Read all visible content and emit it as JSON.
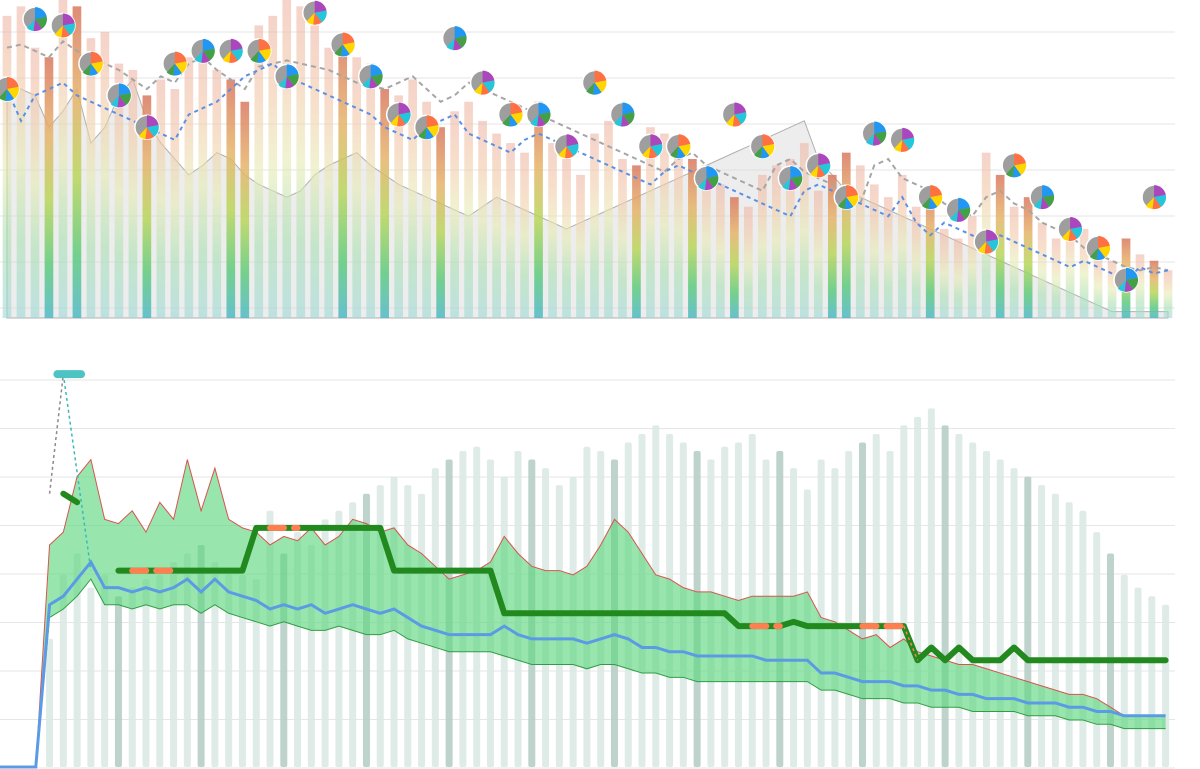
{
  "chart_data": [
    {
      "type": "bar",
      "x": [
        0,
        1,
        2,
        3,
        4,
        5,
        6,
        7,
        8,
        9,
        10,
        11,
        12,
        13,
        14,
        15,
        16,
        17,
        18,
        19,
        20,
        21,
        22,
        23,
        24,
        25,
        26,
        27,
        28,
        29,
        30,
        31,
        32,
        33,
        34,
        35,
        36,
        37,
        38,
        39,
        40,
        41,
        42,
        43,
        44,
        45,
        46,
        47,
        48,
        49,
        50,
        51,
        52,
        53,
        54,
        55,
        56,
        57,
        58,
        59,
        60,
        61,
        62,
        63,
        64,
        65,
        66,
        67,
        68,
        69,
        70,
        71,
        72,
        73,
        74,
        75,
        76,
        77,
        78,
        79,
        80,
        81,
        82,
        83
      ],
      "ylim": [
        0,
        100
      ],
      "grid": true,
      "series": [
        {
          "role": "bars",
          "values": [
            95,
            98,
            85,
            82,
            100,
            98,
            88,
            90,
            80,
            78,
            70,
            75,
            72,
            82,
            85,
            78,
            75,
            68,
            92,
            95,
            100,
            98,
            92,
            85,
            88,
            82,
            80,
            72,
            70,
            75,
            68,
            60,
            65,
            68,
            62,
            58,
            55,
            52,
            68,
            55,
            50,
            45,
            58,
            62,
            50,
            48,
            60,
            58,
            55,
            50,
            48,
            42,
            38,
            35,
            45,
            48,
            50,
            55,
            40,
            45,
            52,
            48,
            42,
            38,
            45,
            35,
            40,
            28,
            25,
            32,
            52,
            45,
            35,
            38,
            30,
            25,
            30,
            28,
            20,
            18,
            25,
            20,
            18,
            15
          ]
        },
        {
          "role": "line-dashed-grey",
          "values": [
            85,
            86,
            84,
            82,
            87,
            84,
            82,
            80,
            78,
            75,
            72,
            76,
            74,
            80,
            82,
            78,
            75,
            72,
            79,
            80,
            81,
            80,
            79,
            78,
            76,
            74,
            73,
            72,
            74,
            76,
            72,
            68,
            70,
            74,
            72,
            70,
            68,
            66,
            64,
            62,
            60,
            58,
            56,
            54,
            52,
            50,
            48,
            46,
            50,
            52,
            48,
            46,
            44,
            42,
            40,
            48,
            50,
            46,
            44,
            42,
            38,
            36,
            48,
            50,
            44,
            42,
            40,
            36,
            34,
            32,
            38,
            40,
            36,
            34,
            30,
            28,
            26,
            22,
            20,
            18,
            16,
            15,
            16,
            15
          ]
        },
        {
          "role": "line-dashed-blue",
          "values": [
            72,
            62,
            70,
            72,
            74,
            70,
            68,
            66,
            64,
            62,
            60,
            58,
            56,
            64,
            66,
            68,
            72,
            76,
            78,
            80,
            76,
            74,
            72,
            70,
            68,
            66,
            64,
            60,
            58,
            56,
            60,
            62,
            64,
            58,
            56,
            54,
            52,
            56,
            58,
            56,
            54,
            52,
            50,
            48,
            46,
            44,
            42,
            46,
            48,
            46,
            44,
            42,
            40,
            38,
            36,
            34,
            32,
            40,
            42,
            40,
            38,
            36,
            34,
            32,
            38,
            30,
            26,
            30,
            28,
            26,
            24,
            26,
            24,
            22,
            20,
            18,
            16,
            18,
            16,
            14,
            12,
            16,
            14,
            15
          ]
        },
        {
          "role": "area-grey",
          "values": [
            75,
            72,
            70,
            60,
            65,
            72,
            55,
            60,
            70,
            75,
            62,
            55,
            50,
            45,
            48,
            52,
            50,
            45,
            42,
            40,
            38,
            40,
            45,
            48,
            50,
            52,
            48,
            45,
            42,
            40,
            38,
            36,
            34,
            32,
            35,
            38,
            36,
            34,
            32,
            30,
            28,
            30,
            32,
            34,
            36,
            38,
            40,
            42,
            44,
            46,
            48,
            50,
            52,
            54,
            56,
            58,
            60,
            62,
            50,
            45,
            40,
            38,
            36,
            34,
            32,
            30,
            28,
            26,
            24,
            22,
            20,
            18,
            16,
            14,
            12,
            10,
            8,
            6,
            4,
            2,
            2,
            2,
            2,
            2
          ]
        }
      ]
    },
    {
      "type": "line",
      "x": [
        0,
        1,
        2,
        3,
        4,
        5,
        6,
        7,
        8,
        9,
        10,
        11,
        12,
        13,
        14,
        15,
        16,
        17,
        18,
        19,
        20,
        21,
        22,
        23,
        24,
        25,
        26,
        27,
        28,
        29,
        30,
        31,
        32,
        33,
        34,
        35,
        36,
        37,
        38,
        39,
        40,
        41,
        42,
        43,
        44,
        45,
        46,
        47,
        48,
        49,
        50,
        51,
        52,
        53,
        54,
        55,
        56,
        57,
        58,
        59,
        60,
        61,
        62,
        63,
        64,
        65,
        66,
        67,
        68,
        69,
        70,
        71,
        72,
        73,
        74,
        75,
        76,
        77,
        78,
        79,
        80,
        81,
        82,
        83
      ],
      "ylim": [
        0,
        100
      ],
      "grid": true,
      "series": [
        {
          "role": "band-upper",
          "values": [
            0,
            0,
            52,
            55,
            68,
            72,
            58,
            57,
            60,
            55,
            62,
            58,
            72,
            60,
            70,
            58,
            56,
            55,
            52,
            54,
            53,
            56,
            52,
            54,
            58,
            57,
            55,
            56,
            52,
            50,
            47,
            44,
            45,
            46,
            48,
            54,
            50,
            47,
            46,
            46,
            45,
            47,
            52,
            58,
            55,
            50,
            45,
            44,
            42,
            41,
            41,
            40,
            39,
            40,
            40,
            40,
            40,
            41,
            35,
            34,
            32,
            30,
            31,
            28,
            30,
            27,
            26,
            25,
            24,
            24,
            23,
            22,
            21,
            20,
            19,
            18,
            17,
            17,
            16,
            14,
            12,
            12,
            12,
            12
          ]
        },
        {
          "role": "band-lower",
          "values": [
            0,
            0,
            35,
            37,
            40,
            44,
            38,
            38,
            37,
            38,
            37,
            38,
            38,
            36,
            38,
            36,
            35,
            34,
            33,
            34,
            33,
            32,
            32,
            33,
            32,
            31,
            31,
            32,
            30,
            29,
            28,
            27,
            27,
            27,
            27,
            26,
            25,
            24,
            24,
            24,
            24,
            23,
            24,
            24,
            23,
            22,
            22,
            21,
            21,
            20,
            20,
            20,
            20,
            20,
            20,
            20,
            20,
            20,
            18,
            18,
            17,
            16,
            16,
            16,
            15,
            15,
            14,
            14,
            14,
            13,
            13,
            13,
            13,
            12,
            12,
            12,
            11,
            11,
            10,
            10,
            9,
            9,
            9,
            9
          ]
        },
        {
          "role": "median-blue",
          "values": [
            0,
            0,
            38,
            40,
            44,
            48,
            42,
            42,
            41,
            42,
            41,
            42,
            44,
            41,
            44,
            41,
            40,
            39,
            37,
            38,
            37,
            38,
            36,
            37,
            38,
            37,
            36,
            37,
            35,
            33,
            32,
            31,
            31,
            31,
            31,
            33,
            31,
            30,
            30,
            30,
            30,
            29,
            30,
            31,
            30,
            28,
            28,
            27,
            27,
            26,
            26,
            26,
            26,
            26,
            25,
            25,
            25,
            25,
            22,
            22,
            21,
            20,
            20,
            20,
            19,
            19,
            18,
            18,
            17,
            17,
            16,
            16,
            16,
            15,
            15,
            15,
            14,
            14,
            13,
            13,
            12,
            12,
            12,
            12
          ]
        },
        {
          "role": "step-green",
          "values": [
            null,
            null,
            null,
            64,
            62,
            null,
            null,
            46,
            46,
            46,
            46,
            46,
            46,
            46,
            46,
            46,
            46,
            56,
            56,
            56,
            56,
            56,
            56,
            56,
            56,
            56,
            56,
            46,
            46,
            46,
            46,
            46,
            46,
            46,
            46,
            36,
            36,
            36,
            36,
            36,
            36,
            36,
            36,
            36,
            36,
            36,
            36,
            36,
            36,
            36,
            36,
            36,
            33,
            33,
            33,
            33,
            34,
            33,
            33,
            33,
            33,
            33,
            33,
            33,
            33,
            25,
            28,
            25,
            28,
            25,
            25,
            25,
            28,
            25,
            25,
            25,
            25,
            25,
            25,
            25,
            25,
            25,
            25,
            25
          ]
        },
        {
          "role": "columns-grey",
          "values": [
            0,
            0,
            30,
            45,
            50,
            42,
            45,
            40,
            42,
            44,
            45,
            48,
            50,
            52,
            48,
            46,
            45,
            44,
            60,
            50,
            55,
            52,
            58,
            60,
            62,
            64,
            66,
            68,
            66,
            64,
            70,
            72,
            74,
            75,
            72,
            68,
            74,
            72,
            70,
            66,
            68,
            75,
            74,
            72,
            76,
            78,
            80,
            78,
            76,
            74,
            72,
            75,
            76,
            78,
            72,
            74,
            70,
            65,
            72,
            70,
            74,
            76,
            78,
            74,
            80,
            82,
            84,
            80,
            78,
            76,
            74,
            72,
            70,
            68,
            66,
            64,
            62,
            60,
            55,
            50,
            45,
            42,
            40,
            38
          ]
        }
      ]
    }
  ]
}
